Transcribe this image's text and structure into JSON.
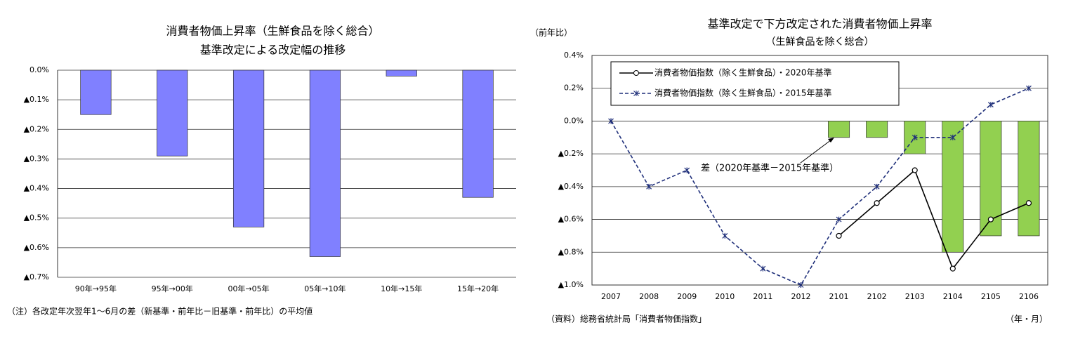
{
  "chart_data": [
    {
      "type": "bar",
      "title": [
        "消費者物価上昇率（生鮮食品を除く総合）",
        "基準改定による改定幅の推移"
      ],
      "note": "（注）各改定年次翌年1～6月の差（新基準・前年比－旧基準・前年比）の平均値",
      "categories": [
        "90年→95年",
        "95年→00年",
        "00年→05年",
        "05年→10年",
        "10年→15年",
        "15年→20年"
      ],
      "series": [
        {
          "type": "bar",
          "color": "#8080ff",
          "values": [
            -0.15,
            -0.29,
            -0.53,
            -0.63,
            -0.02,
            -0.43
          ]
        }
      ],
      "ylim": [
        -0.7,
        0
      ],
      "yticks": [
        {
          "value": 0,
          "label": "0.0%"
        },
        {
          "value": -0.1,
          "label": "▲0.1%"
        },
        {
          "value": -0.2,
          "label": "▲0.2%"
        },
        {
          "value": -0.3,
          "label": "▲0.3%"
        },
        {
          "value": -0.4,
          "label": "▲0.4%"
        },
        {
          "value": -0.5,
          "label": "▲0.5%"
        },
        {
          "value": -0.6,
          "label": "▲0.6%"
        },
        {
          "value": -0.7,
          "label": "▲0.7%"
        }
      ],
      "grid": true,
      "frame": false
    },
    {
      "type": "combo",
      "title": "基準改定で下方改定された消費者物価上昇率",
      "subtitle": "（生鮮食品を除く総合）",
      "ylabel": "（前年比）",
      "xlabel": "（年・月）",
      "source": "（資料）総務省統計局「消費者物価指数」",
      "annotation": "差（2020年基準－2015年基準）",
      "categories": [
        "2007",
        "2008",
        "2009",
        "2010",
        "2011",
        "2012",
        "2101",
        "2102",
        "2103",
        "2104",
        "2105",
        "2106"
      ],
      "series": [
        {
          "type": "bar",
          "color": "#92d050",
          "values": [
            null,
            null,
            null,
            null,
            null,
            null,
            -0.1,
            -0.1,
            -0.2,
            -0.8,
            -0.7,
            -0.7
          ]
        },
        {
          "type": "line",
          "name": "消費者物価指数（除く生鮮食品）・2020年基準",
          "color": "#000000",
          "marker": "circle",
          "dashed": false,
          "values": [
            null,
            null,
            null,
            null,
            null,
            null,
            -0.7,
            -0.5,
            -0.3,
            -0.9,
            -0.6,
            -0.5
          ]
        },
        {
          "type": "line",
          "name": "消費者物価指数（除く生鮮食品）・2015年基準",
          "color": "#1f2f7a",
          "marker": "star",
          "dashed": true,
          "values": [
            0.0,
            -0.4,
            -0.3,
            -0.7,
            -0.9,
            -1.0,
            -0.6,
            -0.4,
            -0.1,
            -0.1,
            0.1,
            0.2
          ]
        }
      ],
      "ylim": [
        -1.0,
        0.4
      ],
      "yticks": [
        {
          "value": 0.4,
          "label": "0.4%"
        },
        {
          "value": 0.2,
          "label": "0.2%"
        },
        {
          "value": 0,
          "label": "0.0%"
        },
        {
          "value": -0.2,
          "label": "▲0.2%"
        },
        {
          "value": -0.4,
          "label": "▲0.4%"
        },
        {
          "value": -0.6,
          "label": "▲0.6%"
        },
        {
          "value": -0.8,
          "label": "▲0.8%"
        },
        {
          "value": -1.0,
          "label": "▲1.0%"
        }
      ],
      "grid": true,
      "frame": true,
      "legend": "upper left"
    }
  ]
}
